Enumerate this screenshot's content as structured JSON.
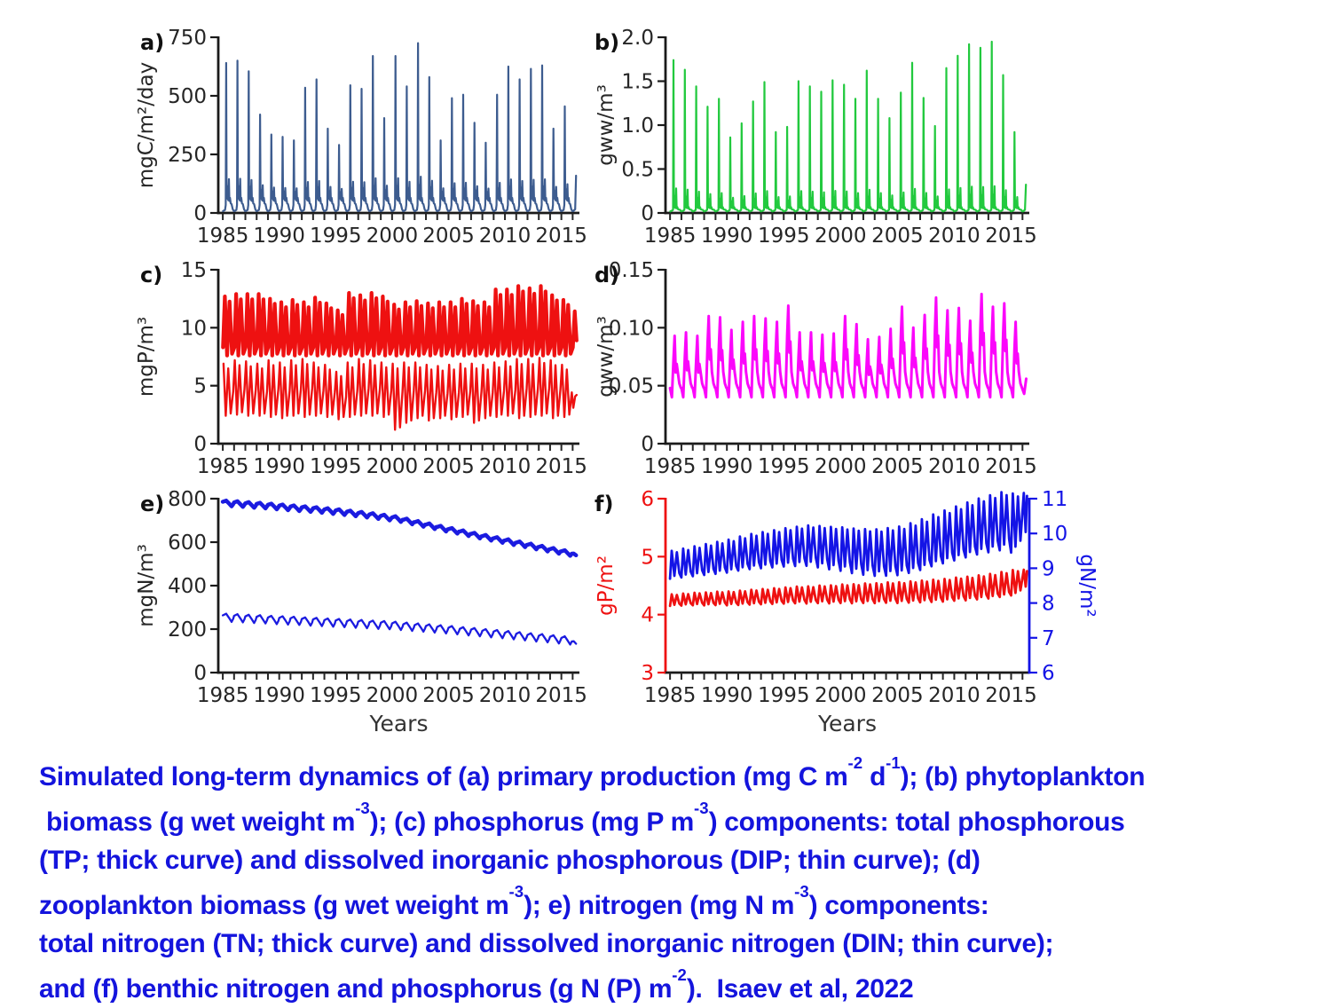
{
  "page": {
    "background": "#ffffff"
  },
  "axis": {
    "spine_color": "#1a1a1a",
    "tick_color": "#262626",
    "tick_label_color": "#262626",
    "x_tick_labels": [
      1985,
      1990,
      1995,
      2000,
      2005,
      2010,
      2015
    ],
    "x_minor_range": [
      1985,
      2016
    ],
    "xlim": [
      1984.6,
      2016.6
    ],
    "xlabel": "Years"
  },
  "chart_data": [
    {
      "id": "a",
      "panel_label": "a)",
      "type": "line",
      "ylabel": "mgC/m²/day",
      "ylim": [
        0,
        750
      ],
      "y_tick_vals": [
        0,
        250,
        500,
        750
      ],
      "y_tick_labels": [
        "0",
        "250",
        "500",
        "750"
      ],
      "xlabel": "",
      "grid": false,
      "years_start": 1985,
      "series": [
        {
          "name": "primary-production",
          "color": "#3d5c8f",
          "line_width": 2.2,
          "pattern": "spiky",
          "base": 8,
          "summer": 68,
          "secondary_frac": 0.12,
          "annual_peaks": [
            640,
            650,
            605,
            420,
            335,
            325,
            310,
            535,
            570,
            360,
            290,
            545,
            530,
            670,
            405,
            670,
            540,
            725,
            580,
            310,
            490,
            505,
            385,
            300,
            505,
            625,
            570,
            615,
            630,
            360,
            455
          ]
        }
      ]
    },
    {
      "id": "b",
      "panel_label": "b)",
      "type": "line",
      "ylabel": "gww/m³",
      "ylim": [
        0,
        2.0
      ],
      "y_tick_vals": [
        0,
        0.5,
        1.0,
        1.5,
        2.0
      ],
      "y_tick_labels": [
        "0",
        "0.5",
        "1.0",
        "1.5",
        "2.0"
      ],
      "xlabel": "",
      "grid": false,
      "years_start": 1985,
      "series": [
        {
          "name": "phytoplankton-biomass",
          "color": "#22c93e",
          "line_width": 2.2,
          "pattern": "spiky",
          "base": 0.018,
          "summer": 0.07,
          "secondary_frac": 0.12,
          "annual_peaks": [
            1.74,
            1.63,
            1.44,
            1.21,
            1.3,
            0.86,
            1.02,
            1.27,
            1.49,
            0.92,
            0.98,
            1.5,
            1.44,
            1.38,
            1.51,
            1.46,
            1.3,
            1.62,
            1.3,
            1.08,
            1.37,
            1.71,
            1.31,
            0.99,
            1.65,
            1.79,
            1.92,
            1.88,
            1.95,
            1.57,
            0.92
          ]
        }
      ]
    },
    {
      "id": "c",
      "panel_label": "c)",
      "type": "line",
      "ylabel": "mgP/m³",
      "ylim": [
        0,
        15
      ],
      "y_tick_vals": [
        0,
        5,
        10,
        15
      ],
      "y_tick_labels": [
        "0",
        "5",
        "10",
        "15"
      ],
      "xlabel": "",
      "grid": false,
      "years_start": 1985,
      "series": [
        {
          "name": "total-phosphorus-TP",
          "color": "#ee1111",
          "line_width": 4.2,
          "pattern": "osc2",
          "valley": 7.6,
          "annual_peaks": [
            12.7,
            12.9,
            12.9,
            12.9,
            12.5,
            12.2,
            12.4,
            12.2,
            12.6,
            12.1,
            11.5,
            13.0,
            12.8,
            13.0,
            12.7,
            12.0,
            12.2,
            12.3,
            12.1,
            12.2,
            12.2,
            12.5,
            12.3,
            12.2,
            13.3,
            13.3,
            13.6,
            13.4,
            13.6,
            12.8,
            12.4
          ]
        },
        {
          "name": "dissolved-inorganic-phosphorus-DIP",
          "color": "#ee1111",
          "line_width": 2.4,
          "pattern": "saw2",
          "annual_peaks": [
            6.9,
            7.2,
            7.1,
            6.9,
            7.2,
            7.0,
            7.2,
            7.3,
            7.0,
            6.8,
            6.2,
            7.0,
            7.3,
            7.2,
            7.0,
            6.9,
            7.0,
            7.0,
            6.8,
            6.7,
            6.8,
            6.9,
            6.9,
            6.8,
            7.0,
            7.1,
            7.3,
            7.3,
            7.4,
            7.2,
            6.8
          ],
          "annual_troughs": [
            2.4,
            2.5,
            2.4,
            2.4,
            2.3,
            2.2,
            2.4,
            2.3,
            2.4,
            2.3,
            2.1,
            2.3,
            2.4,
            2.4,
            2.3,
            1.2,
            1.8,
            2.2,
            2.0,
            2.2,
            2.1,
            2.3,
            1.8,
            2.2,
            2.3,
            2.4,
            2.2,
            2.3,
            2.4,
            2.2,
            2.3
          ]
        }
      ]
    },
    {
      "id": "d",
      "panel_label": "d)",
      "type": "line",
      "ylabel": "gww/m³",
      "ylim": [
        0,
        0.15
      ],
      "y_tick_vals": [
        0,
        0.05,
        0.1,
        0.15
      ],
      "y_tick_labels": [
        "0",
        "0.05",
        "0.10",
        "0.15"
      ],
      "xlabel": "",
      "grid": false,
      "years_start": 1985,
      "series": [
        {
          "name": "zooplankton-biomass",
          "color": "#fb06fb",
          "line_width": 3,
          "pattern": "zoo",
          "trough": 0.04,
          "annual_peaks": [
            0.093,
            0.096,
            0.093,
            0.11,
            0.109,
            0.098,
            0.105,
            0.11,
            0.108,
            0.105,
            0.119,
            0.096,
            0.096,
            0.094,
            0.095,
            0.11,
            0.103,
            0.09,
            0.092,
            0.099,
            0.118,
            0.1,
            0.111,
            0.126,
            0.115,
            0.117,
            0.106,
            0.129,
            0.118,
            0.121,
            0.105
          ]
        }
      ]
    },
    {
      "id": "e",
      "panel_label": "e)",
      "type": "line",
      "ylabel": "mgN/m³",
      "ylim": [
        0,
        800
      ],
      "y_tick_vals": [
        0,
        200,
        400,
        600,
        800
      ],
      "y_tick_labels": [
        "0",
        "200",
        "400",
        "600",
        "800"
      ],
      "xlabel": "Years",
      "grid": false,
      "years_start": 1985,
      "series": [
        {
          "name": "total-nitrogen-TN",
          "color": "#1b1be0",
          "line_width": 4.5,
          "pattern": "wiggle",
          "amp": 13,
          "annual_means": [
            778,
            775,
            771,
            768,
            764,
            760,
            756,
            752,
            748,
            743,
            738,
            732,
            726,
            720,
            713,
            706,
            695,
            684,
            673,
            662,
            652,
            641,
            630,
            620,
            610,
            600,
            590,
            580,
            570,
            560,
            550
          ]
        },
        {
          "name": "dissolved-inorganic-nitrogen-DIN",
          "color": "#1b1be0",
          "line_width": 2.3,
          "pattern": "wiggle",
          "amp": 19,
          "annual_means": [
            252,
            250,
            247,
            245,
            242,
            240,
            238,
            235,
            233,
            230,
            228,
            225,
            223,
            220,
            218,
            215,
            211,
            207,
            203,
            199,
            195,
            190,
            186,
            181,
            177,
            172,
            167,
            162,
            158,
            153,
            148
          ]
        }
      ]
    },
    {
      "id": "f",
      "panel_label": "f)",
      "type": "line",
      "dual_axis": true,
      "ylabel_left": "gP/m²",
      "ylabel_right": "gN/m²",
      "left_color": "#ee1111",
      "right_color": "#1414e6",
      "ylim_left": [
        3,
        6
      ],
      "y_tick_vals_left": [
        3,
        4,
        5,
        6
      ],
      "y_tick_labels_left": [
        "3",
        "4",
        "5",
        "6"
      ],
      "ylim_right": [
        6,
        11
      ],
      "y_tick_vals_right": [
        6,
        7,
        8,
        9,
        10,
        11
      ],
      "y_tick_labels_right": [
        "6",
        "7",
        "8",
        "9",
        "10",
        "11"
      ],
      "xlabel": "Years",
      "grid": false,
      "years_start": 1985,
      "series": [
        {
          "name": "benthic-phosphorus",
          "axis": "left",
          "color": "#ee1111",
          "line_width": 2.8,
          "pattern": "wiggle2",
          "amp": 0.1,
          "amp_growth": 0.004,
          "annual_means": [
            4.25,
            4.26,
            4.27,
            4.27,
            4.28,
            4.28,
            4.29,
            4.3,
            4.31,
            4.32,
            4.33,
            4.34,
            4.34,
            4.35,
            4.35,
            4.36,
            4.36,
            4.37,
            4.37,
            4.38,
            4.38,
            4.39,
            4.4,
            4.41,
            4.42,
            4.44,
            4.45,
            4.47,
            4.49,
            4.52,
            4.55
          ]
        },
        {
          "name": "benthic-nitrogen",
          "axis": "right",
          "color": "#1414e6",
          "line_width": 2.8,
          "pattern": "wiggle2",
          "amp": 0.4,
          "amp_growth": 0.015,
          "annual_means": [
            9.1,
            9.15,
            9.2,
            9.25,
            9.3,
            9.35,
            9.42,
            9.48,
            9.52,
            9.56,
            9.6,
            9.63,
            9.65,
            9.62,
            9.58,
            9.55,
            9.5,
            9.47,
            9.45,
            9.47,
            9.5,
            9.58,
            9.68,
            9.8,
            9.9,
            10.0,
            10.1,
            10.2,
            10.28,
            10.35,
            10.3
          ]
        }
      ]
    }
  ],
  "caption": {
    "color": "#1414dd",
    "lines": [
      [
        {
          "t": "Simulated long-term dynamics of (a) primary production (mg C m"
        },
        {
          "sup": "-2"
        },
        {
          "t": " d"
        },
        {
          "sup": "-1"
        },
        {
          "t": "); (b) phytoplankton"
        }
      ],
      [
        {
          "t": " biomass (g wet weight m"
        },
        {
          "sup": "-3"
        },
        {
          "t": "); (c) phosphorus (mg P m"
        },
        {
          "sup": "-3"
        },
        {
          "t": ") components: total phosphorous"
        }
      ],
      [
        {
          "t": "(TP; thick curve) and dissolved inorganic phosphorous (DIP; thin curve); (d)"
        }
      ],
      [
        {
          "t": "zooplankton biomass (g wet weight m"
        },
        {
          "sup": "-3"
        },
        {
          "t": "); e) nitrogen (mg N m"
        },
        {
          "sup": "-3"
        },
        {
          "t": ") components:"
        }
      ],
      [
        {
          "t": "total nitrogen (TN; thick curve) and dissolved inorganic nitrogen (DIN; thin curve);"
        }
      ],
      [
        {
          "t": "and (f) benthic nitrogen and phosphorus (g N (P) m"
        },
        {
          "sup": "-2"
        },
        {
          "t": ").  Isaev et al, 2022"
        }
      ]
    ]
  }
}
